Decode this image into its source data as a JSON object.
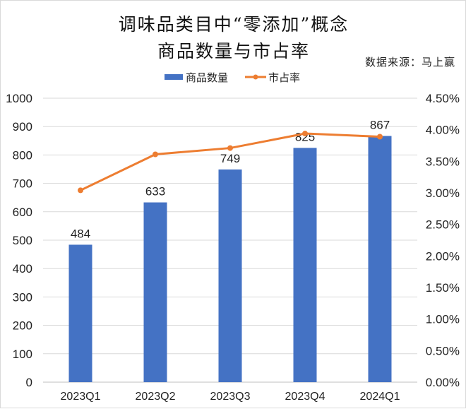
{
  "chart_data": {
    "type": "bar+line",
    "title": "调味品类目中“零添加”概念",
    "subtitle": "商品数量与市占率",
    "source": "数据来源：马上赢",
    "categories": [
      "2023Q1",
      "2023Q2",
      "2023Q3",
      "2023Q4",
      "2024Q1"
    ],
    "series": [
      {
        "name": "商品数量",
        "type": "bar",
        "axis": "left",
        "color": "#4472C4",
        "values": [
          484,
          633,
          749,
          825,
          867
        ],
        "data_labels": [
          "484",
          "633",
          "749",
          "825",
          "867"
        ]
      },
      {
        "name": "市占率",
        "type": "line",
        "axis": "right",
        "color": "#ED7D31",
        "values": [
          3.04,
          3.61,
          3.71,
          3.94,
          3.89
        ]
      }
    ],
    "y_left": {
      "lim": [
        0,
        1000
      ],
      "ticks": [
        "0",
        "100",
        "200",
        "300",
        "400",
        "500",
        "600",
        "700",
        "800",
        "900",
        "1000"
      ]
    },
    "y_right": {
      "lim": [
        0,
        4.5
      ],
      "unit": "%",
      "ticks": [
        "0.00%",
        "0.50%",
        "1.00%",
        "1.50%",
        "2.00%",
        "2.50%",
        "3.00%",
        "3.50%",
        "4.00%",
        "4.50%"
      ]
    },
    "grid": true,
    "legend_position": "top"
  }
}
